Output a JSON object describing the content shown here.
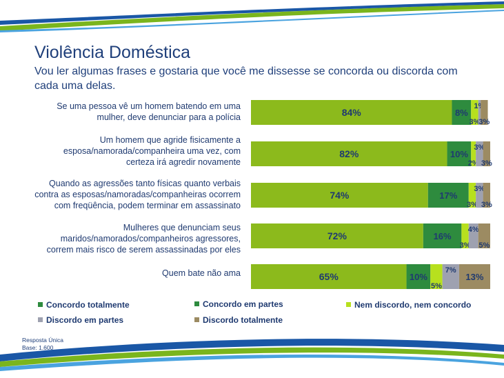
{
  "title": "Violência Doméstica",
  "subtitle": "Vou ler algumas frases e gostaria que você me dissesse se concorda ou discorda com cada uma delas.",
  "footnote": {
    "line1": "Resposta Única",
    "line2": "Base: 1.600"
  },
  "colors": {
    "concordo_totalmente": "#8cba1c",
    "concordo_em_partes": "#2e8b3e",
    "nem_discordo": "#b7e01e",
    "discordo_em_partes": "#9ea1b0",
    "discordo_totalmente": "#9c8b62",
    "label_text": "#1f3a70"
  },
  "chart_data": {
    "type": "bar",
    "orientation": "horizontal",
    "stacked": true,
    "categories": [
      "Se uma pessoa vê um homem batendo em uma mulher, deve denunciar para a polícia",
      "Um homem que agride fisicamente a esposa/namorada/companheira uma vez, com certeza irá agredir novamente",
      "Quando as agressões tanto físicas quanto verbais contra as esposas/namoradas/companheiras ocorrem com freqüência, podem terminar em assassinato",
      "Mulheres que denunciam seus maridos/namorados/companheiros agressores, correm mais risco de serem assassinadas por eles",
      "Quem bate não ama"
    ],
    "series": [
      {
        "name": "Concordo totalmente",
        "values": [
          84,
          82,
          74,
          72,
          65
        ]
      },
      {
        "name": "Concordo em partes",
        "values": [
          8,
          10,
          17,
          16,
          10
        ]
      },
      {
        "name": "Nem discordo, nem concordo",
        "values": [
          3,
          2,
          3,
          3,
          5
        ]
      },
      {
        "name": "Discordo em partes",
        "values": [
          1,
          3,
          3,
          4,
          7
        ]
      },
      {
        "name": "Discordo totalmente",
        "values": [
          3,
          3,
          3,
          5,
          13
        ]
      }
    ],
    "value_suffix": "%",
    "legend_position": "bottom"
  }
}
